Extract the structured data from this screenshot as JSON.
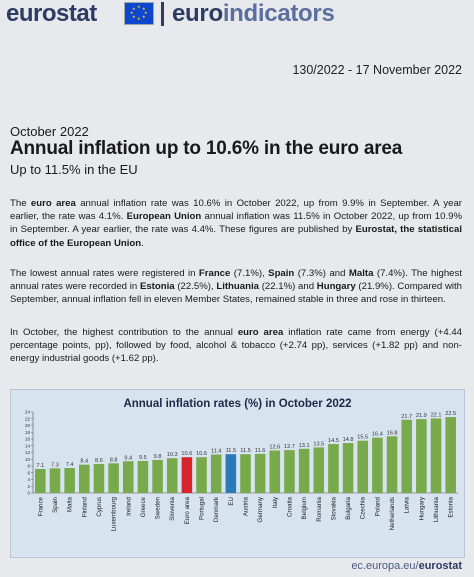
{
  "header": {
    "brand_left": "eurostat",
    "brand_right_a": "euro",
    "brand_right_b": "indicators",
    "release": "130/2022  -  17 November 2022"
  },
  "article": {
    "period": "October 2022",
    "headline": "Annual inflation up to 10.6% in the euro area",
    "subhead": "Up to 11.5% in the EU",
    "p1": [
      {
        "t": "The ",
        "b": false
      },
      {
        "t": "euro area",
        "b": true
      },
      {
        "t": " annual inflation rate was 10.6% in October 2022, up from 9.9% in September. A year earlier, the rate was 4.1%. ",
        "b": false
      },
      {
        "t": "European Union",
        "b": true
      },
      {
        "t": " annual inflation was 11.5% in October 2022, up from 10.9% in September. A year earlier, the rate was 4.4%. These figures are published by ",
        "b": false
      },
      {
        "t": "Eurostat, the statistical office of the European Union",
        "b": true
      },
      {
        "t": ".",
        "b": false
      }
    ],
    "p2": [
      {
        "t": "The lowest annual rates were registered in ",
        "b": false
      },
      {
        "t": "France",
        "b": true
      },
      {
        "t": " (7.1%), ",
        "b": false
      },
      {
        "t": "Spain",
        "b": true
      },
      {
        "t": " (7.3%) and ",
        "b": false
      },
      {
        "t": "Malta",
        "b": true
      },
      {
        "t": " (7.4%). The highest annual rates were recorded in ",
        "b": false
      },
      {
        "t": "Estonia",
        "b": true
      },
      {
        "t": " (22.5%), ",
        "b": false
      },
      {
        "t": "Lithuania",
        "b": true
      },
      {
        "t": " (22.1%) and ",
        "b": false
      },
      {
        "t": "Hungary",
        "b": true
      },
      {
        "t": " (21.9%). Compared with September, annual inflation fell in eleven Member States, remained stable in three and rose in thirteen.",
        "b": false
      }
    ],
    "p3": [
      {
        "t": "In October, the highest contribution to the annual ",
        "b": false
      },
      {
        "t": "euro area",
        "b": true
      },
      {
        "t": " inflation rate came from energy (+4.44 percentage points, pp), followed by food, alcohol & tobacco (+2.74 pp), services (+1.82 pp) and non-energy industrial goods (+1.62 pp).",
        "b": false
      }
    ]
  },
  "chart_data": {
    "type": "bar",
    "title": "Annual inflation rates (%) in October 2022",
    "categories": [
      "France",
      "Spain",
      "Malta",
      "Finland",
      "Cyprus",
      "Luxembourg",
      "Ireland",
      "Greece",
      "Sweden",
      "Slovenia",
      "Euro area",
      "Portugal",
      "Denmark",
      "EU",
      "Austria",
      "Germany",
      "Italy",
      "Croatia",
      "Belgium",
      "Romania",
      "Slovakia",
      "Bulgaria",
      "Czechia",
      "Poland",
      "Netherlands",
      "Latvia",
      "Hungary",
      "Lithuania",
      "Estonia"
    ],
    "values": [
      7.1,
      7.3,
      7.4,
      8.4,
      8.6,
      8.8,
      9.4,
      9.5,
      9.8,
      10.3,
      10.6,
      10.6,
      11.4,
      11.5,
      11.5,
      11.6,
      12.6,
      12.7,
      13.1,
      13.5,
      14.5,
      14.8,
      15.5,
      16.4,
      16.8,
      21.7,
      21.9,
      22.1,
      22.5
    ],
    "ylim": [
      0,
      24
    ],
    "yticks": [
      0,
      2,
      4,
      6,
      8,
      10,
      12,
      14,
      16,
      18,
      20,
      22,
      24
    ],
    "colors": {
      "default": "#78a94a",
      "euro_area": "#d7262b",
      "eu": "#2a7ab8"
    },
    "highlight": {
      "Euro area": "euro_area",
      "EU": "eu"
    },
    "grid": false
  },
  "footer": {
    "url_a": "ec.europa.eu/",
    "url_b": "eurostat"
  }
}
